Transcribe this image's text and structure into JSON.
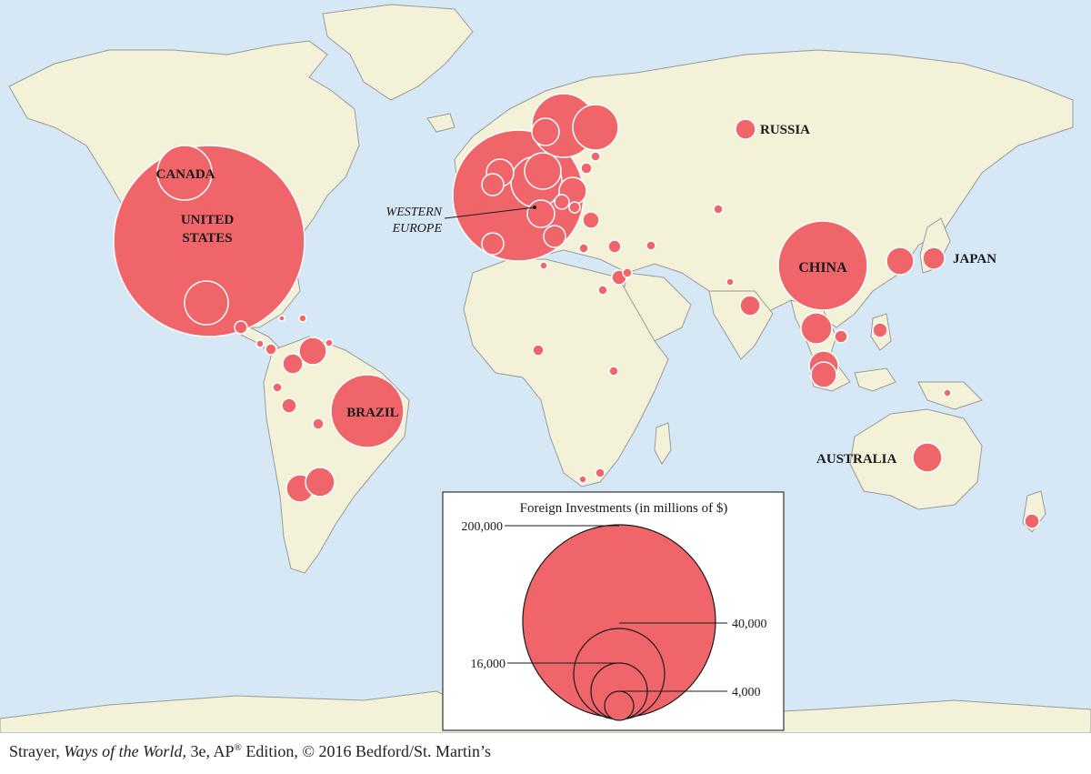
{
  "map": {
    "labels": {
      "canada": "CANADA",
      "united_states_1": "UNITED",
      "united_states_2": "STATES",
      "brazil": "BRAZIL",
      "russia": "RUSSIA",
      "china": "CHINA",
      "japan": "JAPAN",
      "australia": "AUSTRALIA",
      "western_europe_1": "WESTERN",
      "western_europe_2": "EUROPE"
    },
    "colors": {
      "ocean": "#d6e8f5",
      "land": "#f4f1d9",
      "border": "#9a9a9a",
      "bubble": "#f0656a",
      "bubble_edge": "#ffffff"
    }
  },
  "legend": {
    "title": "Foreign Investments (in millions of $)",
    "values": [
      "200,000",
      "40,000",
      "16,000",
      "4,000"
    ]
  },
  "credit": {
    "author": "Strayer,",
    "book": "Ways of the World,",
    "edition": "3e, AP",
    "reg": "®",
    "rest": "Edition, © 2016 Bedford/St. Martin’s"
  }
}
